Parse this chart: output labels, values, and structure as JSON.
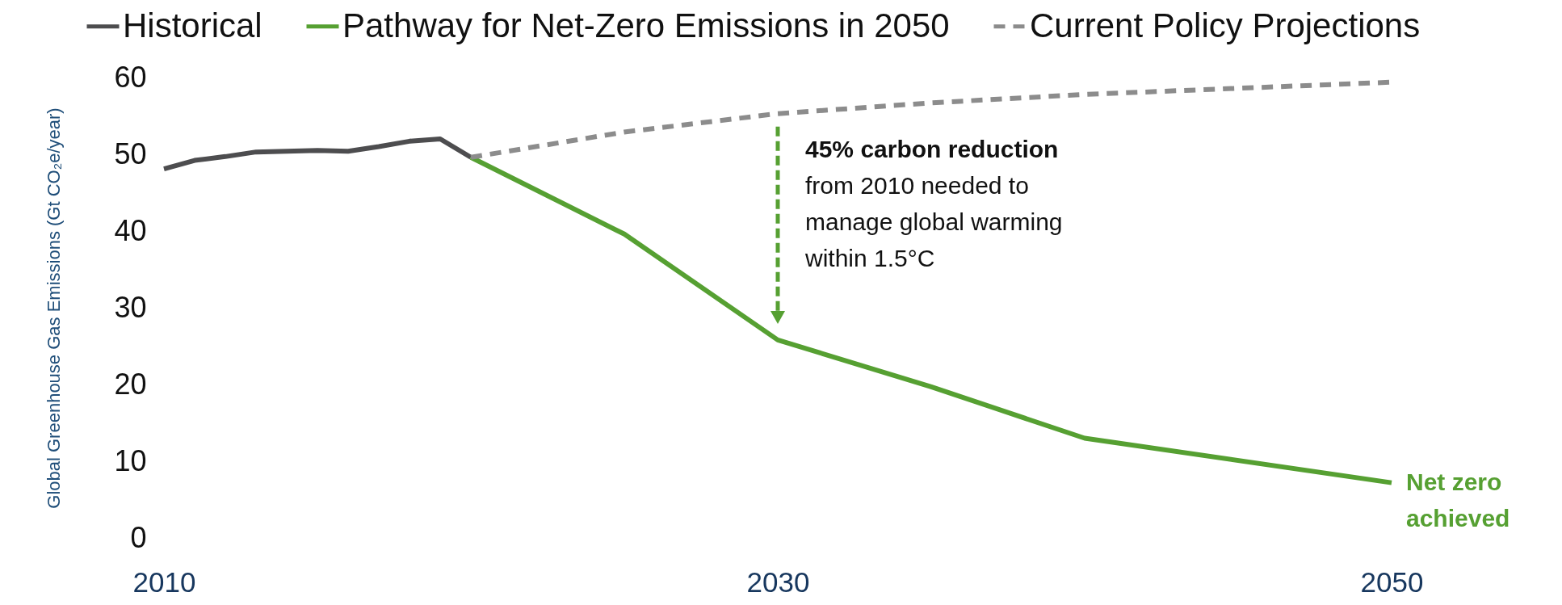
{
  "chart_data": {
    "type": "line",
    "ylabel": "Global Greenhouse Gas Emissions (Gt CO₂e/year)",
    "xlim": [
      2010,
      2050
    ],
    "xticks": [
      2010,
      2030,
      2050
    ],
    "ylim": [
      0,
      60
    ],
    "yticks": [
      0,
      10,
      20,
      30,
      40,
      50,
      60
    ],
    "legend": "top",
    "series": [
      {
        "name": "Historical",
        "color": "#4d4d4f",
        "x": [
          2010,
          2011,
          2012,
          2013,
          2014,
          2015,
          2016,
          2017,
          2018,
          2019,
          2020
        ],
        "values": [
          48.1,
          49.2,
          49.7,
          50.3,
          50.4,
          50.5,
          50.4,
          51.0,
          51.7,
          52.0,
          49.6
        ]
      },
      {
        "name": "Pathway for Net-Zero Emissions in 2050",
        "color": "#56a032",
        "x": [
          2020,
          2025,
          2030,
          2035,
          2040,
          2050
        ],
        "values": [
          49.6,
          39.6,
          25.8,
          19.7,
          13.0,
          7.2
        ]
      },
      {
        "name": "Current Policy Projections",
        "color": "#8c8c8c",
        "line_style": "dashed",
        "x": [
          2020,
          2025,
          2030,
          2035,
          2040,
          2050
        ],
        "values": [
          49.6,
          52.9,
          55.3,
          56.7,
          57.8,
          59.4
        ]
      }
    ],
    "annotations": [
      {
        "text": "45% carbon reduction",
        "x": 2030,
        "y": 55.3
      },
      "from 2010 needed to manage global warming within 1.5°C",
      {
        "text": "Net zero achieved",
        "x": 2050,
        "y": 7.2
      }
    ]
  }
}
